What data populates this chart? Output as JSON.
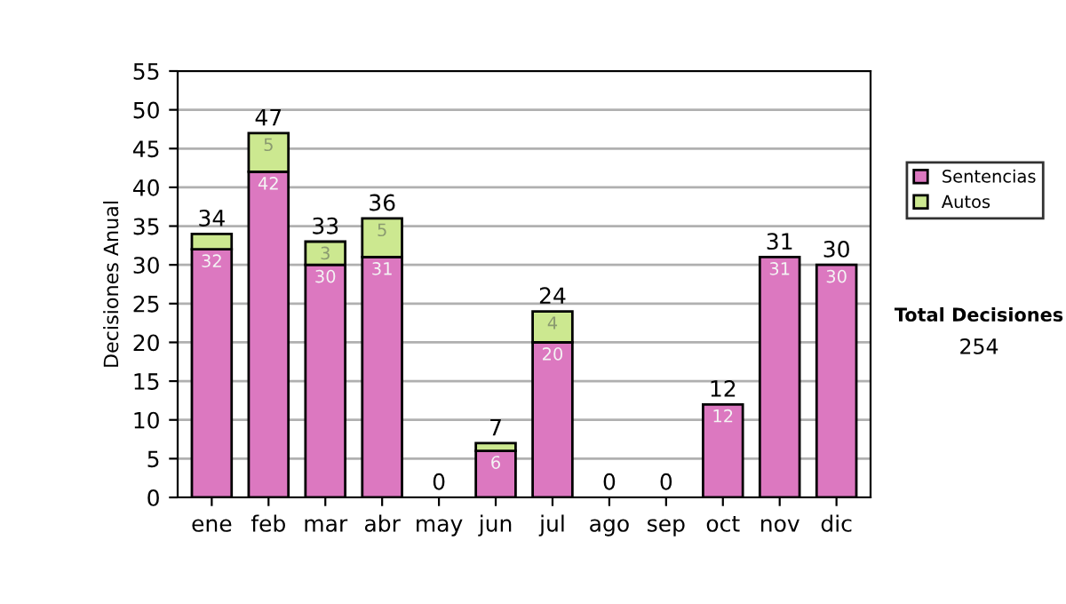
{
  "chart_data": {
    "type": "bar",
    "stacked": true,
    "ylabel": "Decisiones Anual",
    "categories": [
      "ene",
      "feb",
      "mar",
      "abr",
      "may",
      "jun",
      "jul",
      "ago",
      "sep",
      "oct",
      "nov",
      "dic"
    ],
    "series": [
      {
        "name": "Sentencias",
        "color": "#dc78c0",
        "values": [
          32,
          42,
          30,
          31,
          0,
          6,
          20,
          0,
          0,
          12,
          31,
          30
        ],
        "value_labels": [
          "32",
          "42",
          "30",
          "31",
          null,
          "6",
          "20",
          null,
          null,
          "12",
          "31",
          "30"
        ]
      },
      {
        "name": "Autos",
        "color": "#cce890",
        "values": [
          2,
          5,
          3,
          5,
          0,
          1,
          4,
          0,
          0,
          0,
          0,
          0
        ],
        "value_labels": [
          null,
          "5",
          "3",
          "5",
          null,
          null,
          "4",
          null,
          null,
          null,
          null,
          null
        ]
      }
    ],
    "totals": [
      "34",
      "47",
      "33",
      "36",
      "0",
      "7",
      "24",
      "0",
      "0",
      "12",
      "31",
      "30"
    ],
    "ylim": [
      0,
      55
    ],
    "yticks": [
      0,
      5,
      10,
      15,
      20,
      25,
      30,
      35,
      40,
      45,
      50,
      55
    ],
    "grid": "y",
    "legend": "right",
    "annotations": [
      "Total Decisiones",
      "254"
    ]
  }
}
